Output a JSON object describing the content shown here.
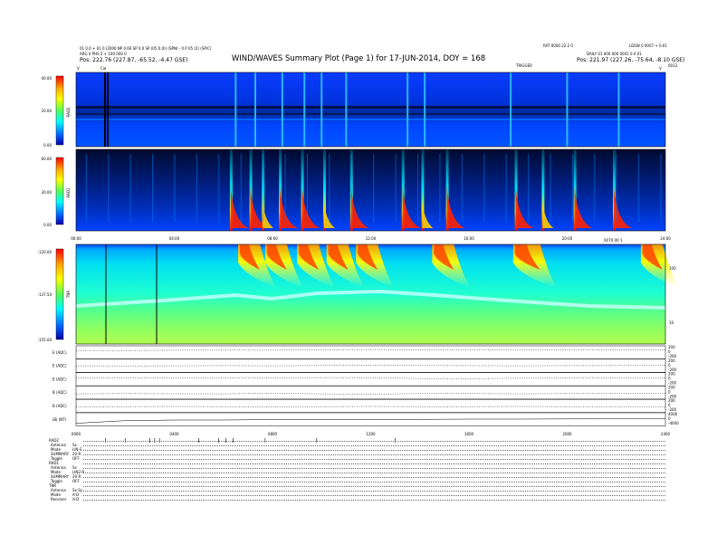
{
  "header": {
    "line1": "01 0.0 + 01 0 (2000 NP 0.66 SP 0.0 SP (05 0.0)) (SPN) - 0 P 05 (2) (SP/C)",
    "line2": "ARG 0 PHS 2 + 100 000 0",
    "pos_left_label": "Pos:",
    "pos_left_value": "222.76 (227.87, -65.52, -4.47 GSE)",
    "top_right_a": "RAT 0000 22.2 0",
    "top_right_b": "LDSW 0 0007 + 0.01",
    "top_right_c": "DAILY 01 000 000 0001 0 0 01",
    "pos_right_label": "Pos:",
    "pos_right_value": "221.97 (227.26, -75.64, -8.10 GSE)",
    "marker_left": "V",
    "marker_cal": "Cal",
    "marker_v_right": "V",
    "marker_tfw": "TRIGGER",
    "marker_end": "0012"
  },
  "title": "WIND/WAVES Summary Plot (Page 1) for 17-JUN-2014, DOY = 168",
  "rad2": {
    "name": "RAD2",
    "ticks": [
      "40.00",
      "20.00",
      "0.00"
    ]
  },
  "rad1": {
    "name": "RAD1",
    "ticks": [
      "60.00",
      "30.00",
      "0.00"
    ]
  },
  "tnr": {
    "name": "TNR",
    "ticks": [
      "-120.00",
      "-137.50",
      "-155.00"
    ],
    "right_ticks": [
      "100",
      "10"
    ],
    "corner": "0070 00 1"
  },
  "time_axis": [
    "00:00",
    "04:00",
    "08:00",
    "12:00",
    "16:00",
    "20:00",
    "24:00"
  ],
  "bottom_time_axis": [
    "0000",
    "0400",
    "0800",
    "1200",
    "1600",
    "2000",
    "2400"
  ],
  "line_panels": [
    {
      "label": "E (ADC)",
      "right_ticks": [
        "200",
        "0",
        "-200"
      ]
    },
    {
      "label": "E (ADC)",
      "right_ticks": [
        "200",
        "0",
        "-200"
      ]
    },
    {
      "label": "E (ADC)",
      "right_ticks": [
        "200",
        "0",
        "-200"
      ]
    },
    {
      "label": "B (ADC)",
      "right_ticks": [
        "200",
        "0",
        "-200"
      ]
    },
    {
      "label": "B (ADC)",
      "right_ticks": [
        "200",
        "0",
        "-200"
      ]
    },
    {
      "label": "|B| (NT)",
      "right_ticks": [
        "4000",
        "0",
        "-4000"
      ]
    }
  ],
  "instrument_table": [
    {
      "text": "RAD2",
      "kind": "head"
    },
    {
      "text": "Antenna",
      "value": "Sx"
    },
    {
      "text": "Mode",
      "value": "LIN-S"
    },
    {
      "text": "SUMMARY",
      "value": "20-R"
    },
    {
      "text": "Toggle",
      "value": "OFF"
    },
    {
      "text": "RAD1",
      "kind": "head"
    },
    {
      "text": "Antenna",
      "value": "Sx"
    },
    {
      "text": "Mode",
      "value": "LIN2-R"
    },
    {
      "text": "SUMMARY",
      "value": "20-R"
    },
    {
      "text": "Toggle",
      "value": "OFF"
    },
    {
      "text": "TNR",
      "kind": "head"
    },
    {
      "text": "Antenna",
      "value": "Sx-Sy"
    },
    {
      "text": "Mode",
      "value": "A-D"
    },
    {
      "text": "Receiver",
      "value": "A-D"
    }
  ],
  "colors": {
    "background": "#ffffff",
    "colorbar": [
      "#ff0000",
      "#ffaa00",
      "#ffff00",
      "#55ff55",
      "#00ffff",
      "#0066ff",
      "#0000aa"
    ]
  },
  "chart_data": [
    {
      "type": "heatmap",
      "name": "RAD2",
      "xlabel": "",
      "ylabel": "RAD2",
      "xlim_hours": [
        0,
        24
      ],
      "colorbar_range": [
        0,
        40
      ],
      "event_hours": [
        6.5,
        7.3,
        8.4,
        9.3,
        10.0,
        11.0,
        13.5,
        14.2,
        17.7,
        20.0,
        22.1
      ],
      "data_gaps_hours": [
        1.2,
        1.4
      ]
    },
    {
      "type": "heatmap",
      "name": "RAD1",
      "xlabel": "",
      "ylabel": "RAD1",
      "xlim_hours": [
        0,
        24
      ],
      "colorbar_range": [
        0,
        60
      ],
      "type_iii_burst_hours": [
        6.3,
        7.1,
        7.6,
        8.3,
        9.2,
        10.1,
        11.2,
        13.3,
        14.1,
        15.1,
        17.9,
        19.0,
        20.3,
        21.9
      ]
    },
    {
      "type": "heatmap",
      "name": "TNR",
      "xlabel": "",
      "ylabel": "TNR",
      "xlim_hours": [
        0,
        24
      ],
      "colorbar_range": [
        -155,
        -120
      ],
      "right_axis_ticks": [
        100,
        10
      ],
      "burst_hours": [
        6.6,
        7.7,
        9.0,
        10.2,
        11.4,
        14.5,
        17.8,
        23.0
      ],
      "plasma_line_level": 0.48,
      "vertical_marks_hours": [
        1.2,
        3.3
      ]
    },
    {
      "type": "line",
      "name": "E and B channels",
      "series": [
        {
          "name": "E (ADC)",
          "values": [
            0.35,
            0.36,
            0.34,
            0.33,
            0.34,
            0.3,
            0.28,
            0.3,
            0.32,
            0.33,
            0.31,
            0.3
          ]
        },
        {
          "name": "E (ADC)",
          "values": [
            0.5,
            0.51,
            0.5,
            0.49,
            0.5,
            0.48,
            0.47,
            0.48,
            0.49,
            0.5,
            0.49,
            0.48
          ]
        },
        {
          "name": "E (ADC)",
          "values": [
            0.4,
            0.42,
            0.41,
            0.43,
            0.4,
            0.38,
            0.4,
            0.45,
            0.47,
            0.43,
            0.4,
            0.41
          ]
        },
        {
          "name": "B (ADC)",
          "values": [
            0.6,
            0.58,
            0.59,
            0.6,
            0.55,
            0.6,
            0.62,
            0.58,
            0.57,
            0.6,
            0.58,
            0.56
          ]
        },
        {
          "name": "B (ADC)",
          "values": [
            0.55,
            0.55,
            0.54,
            0.55,
            0.56,
            0.55,
            0.54,
            0.55,
            0.55,
            0.54,
            0.55,
            0.55
          ]
        },
        {
          "name": "|B| (NT)",
          "values": [
            0.8,
            0.6,
            0.55,
            0.55,
            0.52,
            0.5,
            0.5,
            0.5,
            0.48,
            0.48,
            0.47,
            0.46
          ]
        }
      ],
      "x_hours": [
        0,
        2,
        4,
        6,
        8,
        10,
        12,
        14,
        16,
        18,
        20,
        24
      ]
    }
  ]
}
